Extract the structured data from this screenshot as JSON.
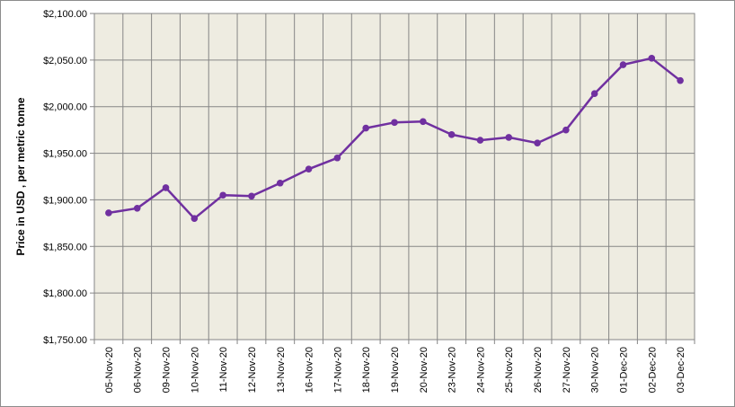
{
  "chart_data": {
    "type": "line",
    "title": "",
    "xlabel": "",
    "ylabel": "Price in USD , per metric tonne",
    "ylim": [
      1750,
      2100
    ],
    "ytick_step": 50,
    "yticks": [
      "$1,750.00",
      "$1,800.00",
      "$1,850.00",
      "$1,900.00",
      "$1,950.00",
      "$2,000.00",
      "$2,050.00",
      "$2,100.00"
    ],
    "grid": true,
    "legend": "none",
    "categories": [
      "05-Nov-20",
      "06-Nov-20",
      "09-Nov-20",
      "10-Nov-20",
      "11-Nov-20",
      "12-Nov-20",
      "13-Nov-20",
      "16-Nov-20",
      "17-Nov-20",
      "18-Nov-20",
      "19-Nov-20",
      "20-Nov-20",
      "23-Nov-20",
      "24-Nov-20",
      "25-Nov-20",
      "26-Nov-20",
      "27-Nov-20",
      "30-Nov-20",
      "01-Dec-20",
      "02-Dec-20",
      "03-Dec-20"
    ],
    "series": [
      {
        "values": [
          1886,
          1891,
          1913,
          1880,
          1905,
          1904,
          1918,
          1933,
          1945,
          1977,
          1983,
          1984,
          1970,
          1964,
          1967,
          1961,
          1975,
          2014,
          2045,
          2052,
          2028
        ]
      }
    ],
    "colors": {
      "line": "#7030a0",
      "plot_bg": "#eeece1",
      "grid": "#868686",
      "axis": "#868686"
    }
  }
}
